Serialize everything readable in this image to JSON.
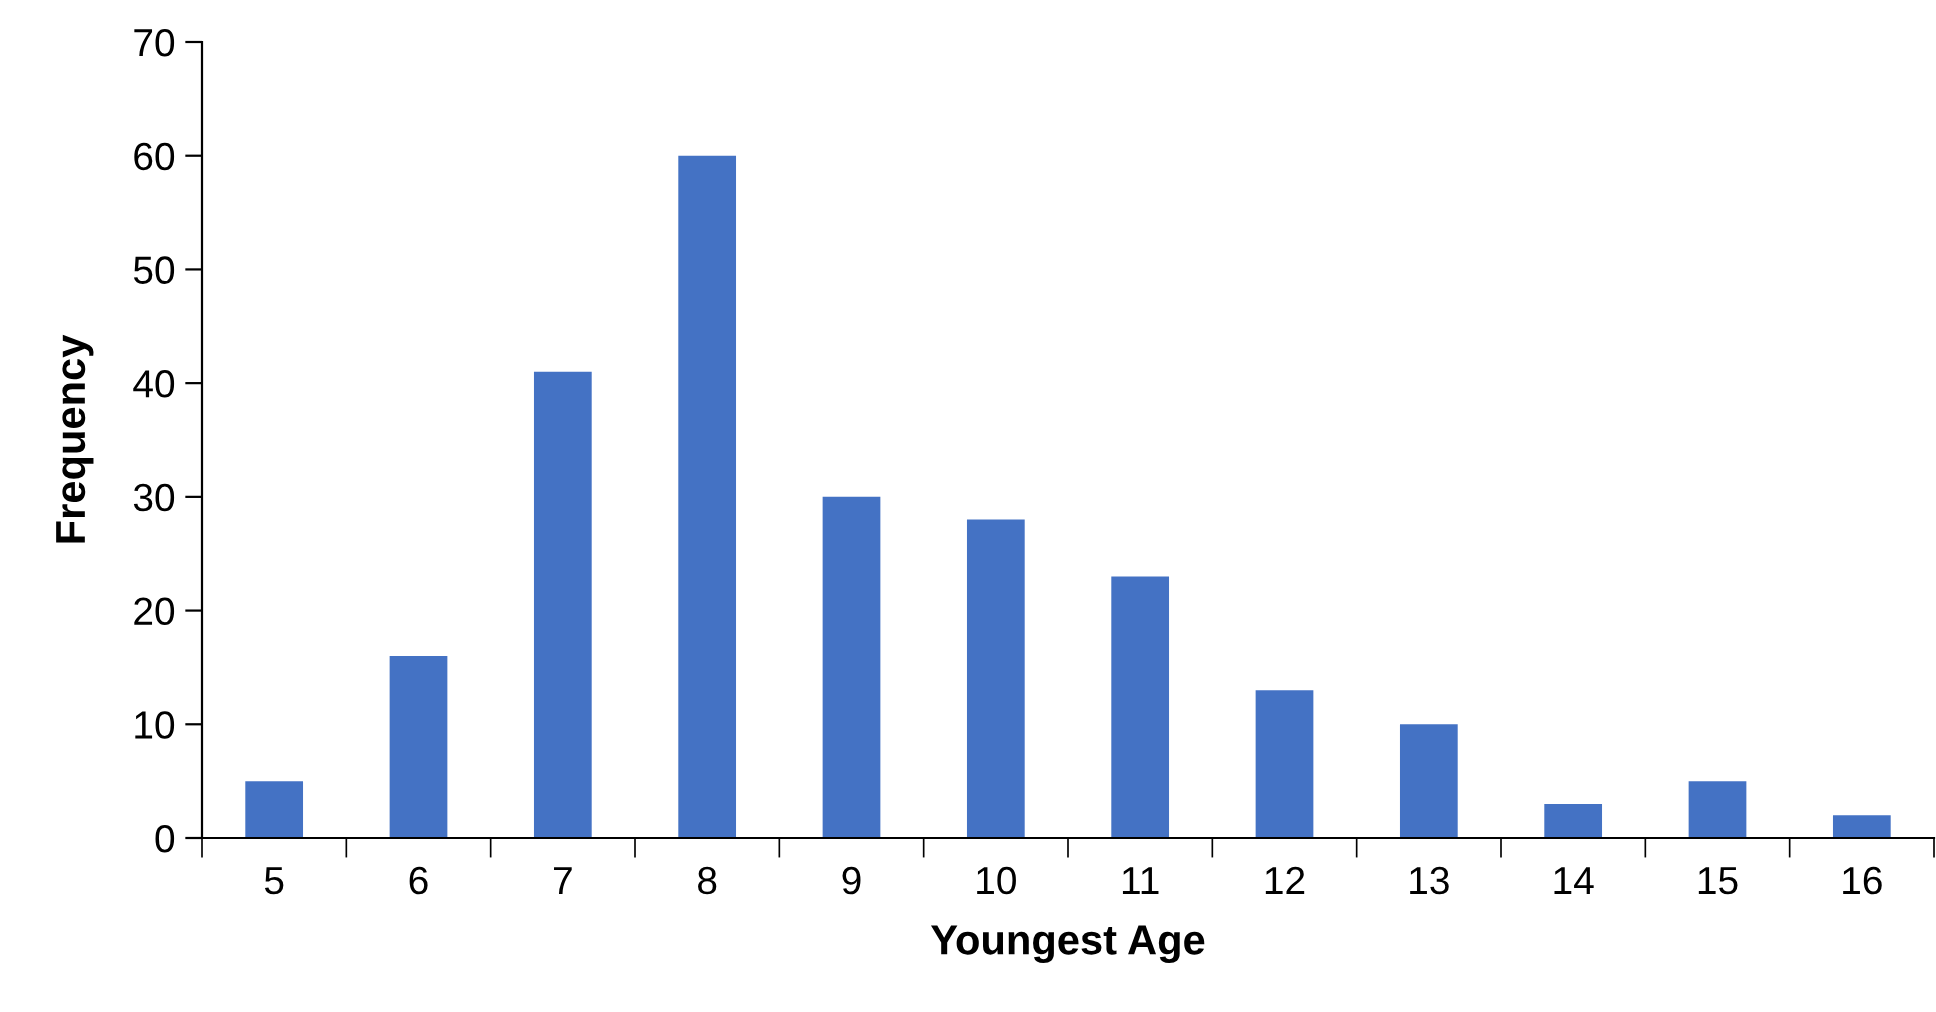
{
  "chart_data": {
    "type": "bar",
    "xlabel": "Youngest Age",
    "ylabel": "Frequency",
    "categories": [
      "5",
      "6",
      "7",
      "8",
      "9",
      "10",
      "11",
      "12",
      "13",
      "14",
      "15",
      "16"
    ],
    "values": [
      5,
      16,
      41,
      60,
      30,
      28,
      23,
      13,
      10,
      3,
      5,
      2
    ],
    "color": "#4472c4",
    "ylim": [
      0,
      70
    ],
    "yticks": [
      0,
      10,
      20,
      30,
      40,
      50,
      60,
      70
    ],
    "grid": false,
    "legend": false
  }
}
